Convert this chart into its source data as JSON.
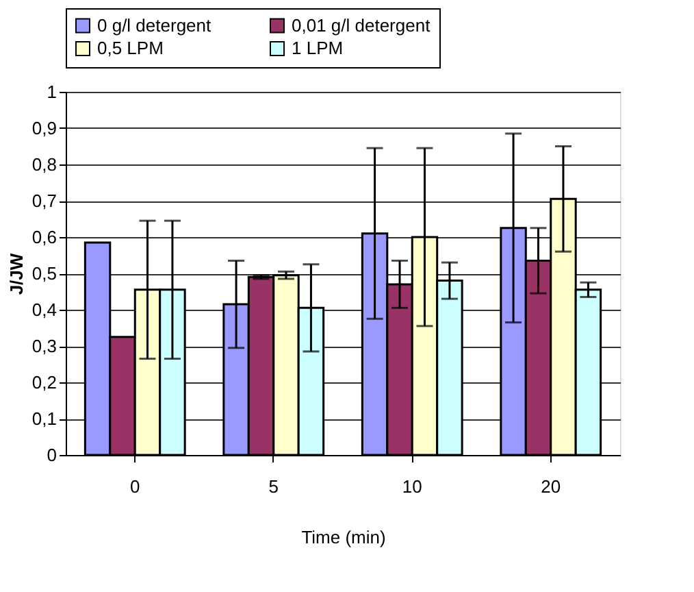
{
  "chart_data": {
    "type": "bar",
    "xlabel": "Time (min)",
    "ylabel": "J/JW",
    "categories": [
      "0",
      "5",
      "10",
      "20"
    ],
    "series": [
      {
        "name": "0 g/l detergent",
        "color": "#9999ff",
        "values": [
          0.585,
          0.415,
          0.61,
          0.625
        ],
        "errors": [
          null,
          0.12,
          0.235,
          0.26
        ]
      },
      {
        "name": "0,01 g/l detergent",
        "color": "#993366",
        "values": [
          0.325,
          0.49,
          0.47,
          0.535
        ],
        "errors": [
          null,
          0.005,
          0.065,
          0.09
        ]
      },
      {
        "name": "0,5 LPM",
        "color": "#ffffcc",
        "values": [
          0.455,
          0.495,
          0.6,
          0.705
        ],
        "errors": [
          0.19,
          0.01,
          0.245,
          0.145
        ]
      },
      {
        "name": "1 LPM",
        "color": "#ccffff",
        "values": [
          0.455,
          0.405,
          0.48,
          0.455
        ],
        "errors": [
          0.19,
          0.12,
          0.05,
          0.02
        ]
      }
    ],
    "ylim": [
      0,
      1
    ],
    "yticks": [
      0,
      {
        "value": 0.1,
        "label": "0,1"
      },
      {
        "value": 0.2,
        "label": "0,2"
      },
      {
        "value": 0.3,
        "label": "0,3"
      },
      {
        "value": 0.4,
        "label": "0,4"
      },
      {
        "value": 0.5,
        "label": "0,5"
      },
      {
        "value": 0.6,
        "label": "0,6"
      },
      {
        "value": 0.7,
        "label": "0,7"
      },
      {
        "value": 0.8,
        "label": "0,8"
      },
      {
        "value": 0.9,
        "label": "0,9"
      },
      1
    ],
    "grid": "y",
    "legend": "top"
  }
}
